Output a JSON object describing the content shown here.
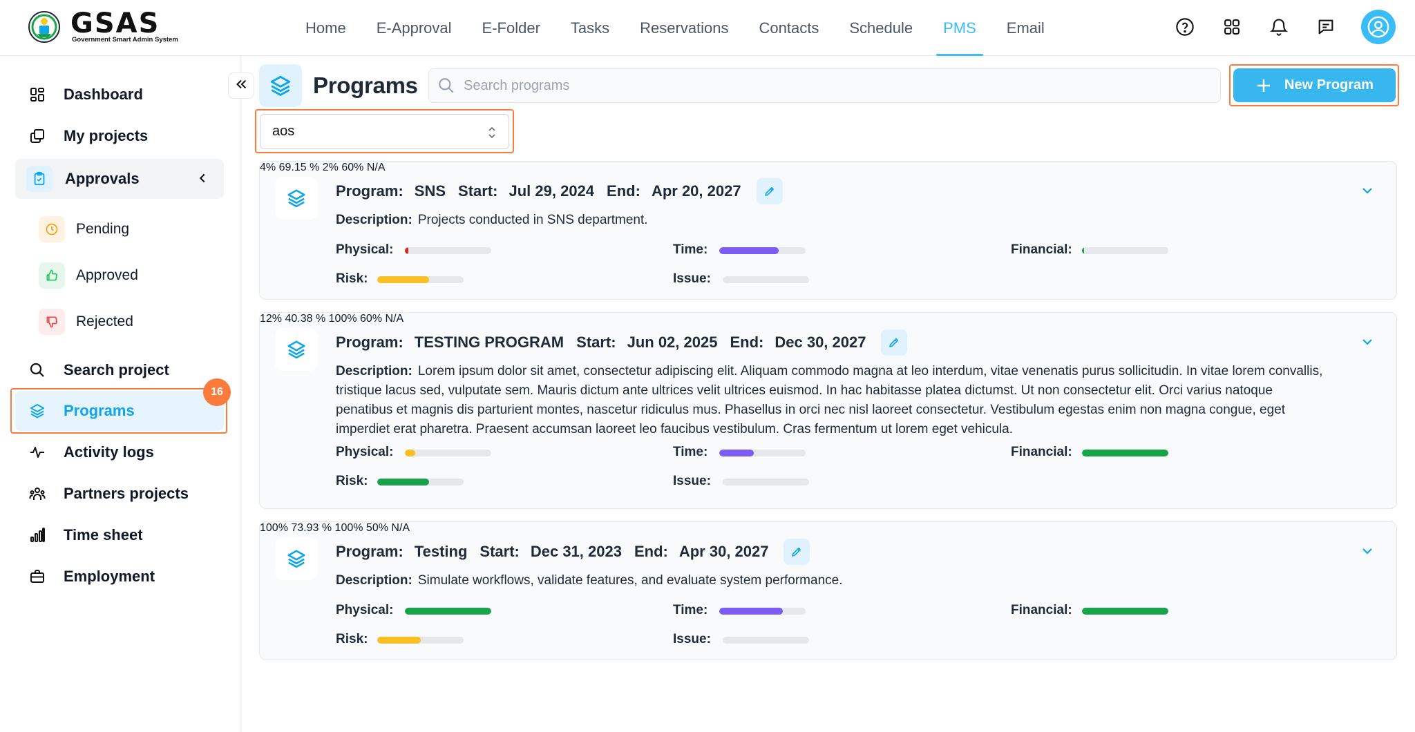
{
  "app": {
    "logo_word": "GSAS",
    "logo_sub": "Government Smart Admin System"
  },
  "nav": [
    {
      "label": "Home"
    },
    {
      "label": "E-Approval"
    },
    {
      "label": "E-Folder"
    },
    {
      "label": "Tasks"
    },
    {
      "label": "Reservations"
    },
    {
      "label": "Contacts"
    },
    {
      "label": "Schedule"
    },
    {
      "label": "PMS",
      "active": true
    },
    {
      "label": "Email"
    }
  ],
  "sidebar": {
    "dashboard": "Dashboard",
    "my_projects": "My projects",
    "approvals": "Approvals",
    "pending": "Pending",
    "approved": "Approved",
    "rejected": "Rejected",
    "search_project": "Search project",
    "programs": "Programs",
    "programs_badge": "16",
    "activity_logs": "Activity logs",
    "partners_projects": "Partners projects",
    "time_sheet": "Time sheet",
    "employment": "Employment"
  },
  "page": {
    "title": "Programs",
    "search_placeholder": "Search programs",
    "new_button": "New Program",
    "filter_value": "aos"
  },
  "labels": {
    "program": "Program:",
    "start": "Start:",
    "end": "End:",
    "description": "Description:",
    "physical": "Physical:",
    "time": "Time:",
    "financial": "Financial:",
    "risk": "Risk:",
    "issue": "Issue:"
  },
  "colors": {
    "accent": "#38bdf8",
    "highlight": "#fb7b3c",
    "red": "#dc2626",
    "yellow": "#fbbf24",
    "green": "#16a34a",
    "purple": "#7c5cf4"
  },
  "programs": [
    {
      "name": "SNS",
      "start": "Jul 29, 2024",
      "end": "Apr 20, 2027",
      "description": "Projects conducted in SNS department.",
      "physical": {
        "text": "4%",
        "value": 4,
        "color": "red"
      },
      "time": {
        "text": "69.15 %",
        "value": 69.15,
        "color": "purple"
      },
      "financial": {
        "text": "2%",
        "value": 2,
        "color": "green"
      },
      "risk": {
        "text": "60%",
        "value": 60,
        "color": "yellow"
      },
      "issue": {
        "text": "N/A",
        "value": 0,
        "color": "green"
      }
    },
    {
      "name": "TESTING PROGRAM",
      "start": "Jun 02, 2025",
      "end": "Dec 30, 2027",
      "description": "Lorem ipsum dolor sit amet, consectetur adipiscing elit. Aliquam commodo magna at leo interdum, vitae venenatis purus sollicitudin. In vitae lorem convallis, tristique lacus sed, vulputate sem. Mauris dictum ante ultrices velit ultrices euismod. In hac habitasse platea dictumst. Ut non consectetur elit. Orci varius natoque penatibus et magnis dis parturient montes, nascetur ridiculus mus. Phasellus in orci nec nisl laoreet consectetur. Vestibulum egestas enim non magna congue, eget imperdiet erat pharetra. Praesent accumsan laoreet leo faucibus vestibulum. Cras fermentum ut lorem eget vehicula.",
      "physical": {
        "text": "12%",
        "value": 12,
        "color": "yellow"
      },
      "time": {
        "text": "40.38 %",
        "value": 40.38,
        "color": "purple"
      },
      "financial": {
        "text": "100%",
        "value": 100,
        "color": "green"
      },
      "risk": {
        "text": "60%",
        "value": 60,
        "color": "green"
      },
      "issue": {
        "text": "N/A",
        "value": 0,
        "color": "green"
      }
    },
    {
      "name": "Testing",
      "start": "Dec 31, 2023",
      "end": "Apr 30, 2027",
      "description": "Simulate workflows, validate features, and evaluate system performance.",
      "physical": {
        "text": "100%",
        "value": 100,
        "color": "green"
      },
      "time": {
        "text": "73.93 %",
        "value": 73.93,
        "color": "purple"
      },
      "financial": {
        "text": "100%",
        "value": 100,
        "color": "green"
      },
      "risk": {
        "text": "50%",
        "value": 50,
        "color": "yellow"
      },
      "issue": {
        "text": "N/A",
        "value": 0,
        "color": "green"
      }
    }
  ]
}
